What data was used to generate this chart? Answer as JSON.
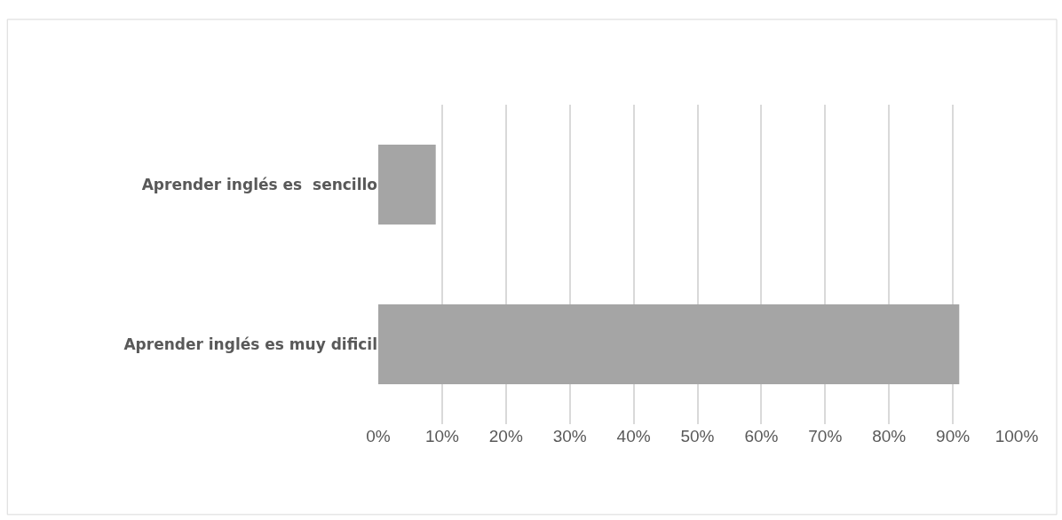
{
  "chart_data": {
    "type": "bar",
    "orientation": "horizontal",
    "categories": [
      "Aprender inglés es  sencillo",
      "Aprender inglés es muy dificil"
    ],
    "values": [
      9,
      91
    ],
    "color": "#a5a5a5",
    "xlim": [
      0,
      100
    ],
    "xticks": [
      {
        "value": 0,
        "label": "0%"
      },
      {
        "value": 10,
        "label": "10%"
      },
      {
        "value": 20,
        "label": "20%"
      },
      {
        "value": 30,
        "label": "30%"
      },
      {
        "value": 40,
        "label": "40%"
      },
      {
        "value": 50,
        "label": "50%"
      },
      {
        "value": 60,
        "label": "60%"
      },
      {
        "value": 70,
        "label": "70%"
      },
      {
        "value": 80,
        "label": "80%"
      },
      {
        "value": 90,
        "label": "90%"
      },
      {
        "value": 100,
        "label": "100%"
      }
    ],
    "grid": "x"
  }
}
